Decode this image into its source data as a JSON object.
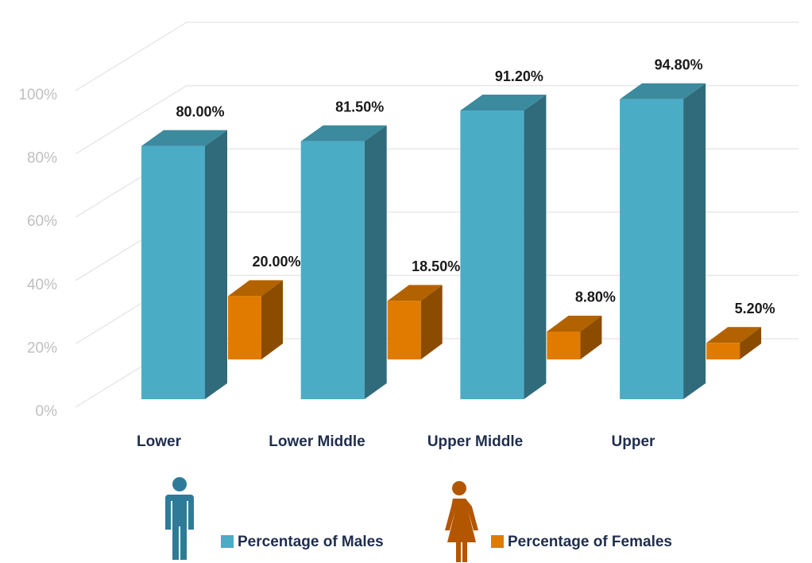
{
  "chart_data": {
    "type": "bar3d",
    "categories": [
      "Lower",
      "Lower Middle",
      "Upper Middle",
      "Upper"
    ],
    "series": [
      {
        "name": "Percentage of Males",
        "color": "#4bacc6",
        "values": [
          80,
          81.5,
          91.2,
          94.8
        ],
        "value_labels": [
          "80.00%",
          "81.50%",
          "91.20%",
          "94.80%"
        ]
      },
      {
        "name": "Percentage of Females",
        "color": "#e07b00",
        "values": [
          20,
          18.5,
          8.8,
          5.2
        ],
        "value_labels": [
          "20.00%",
          "18.50%",
          "8.80%",
          "5.20%"
        ]
      }
    ],
    "ylim": [
      0,
      100
    ],
    "yticks": [
      {
        "value": 0,
        "label": "0%"
      },
      {
        "value": 20,
        "label": "20%"
      },
      {
        "value": 40,
        "label": "40%"
      },
      {
        "value": 60,
        "label": "60%"
      },
      {
        "value": 80,
        "label": "80%"
      },
      {
        "value": 100,
        "label": "100%"
      }
    ],
    "grid": true
  }
}
